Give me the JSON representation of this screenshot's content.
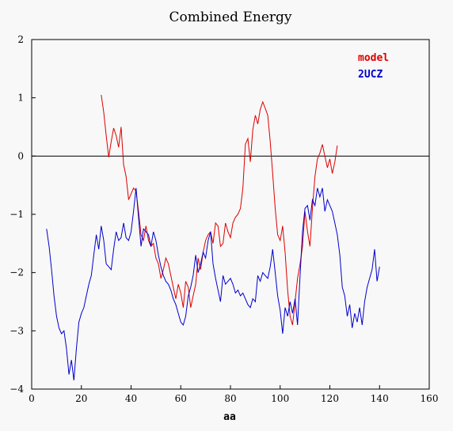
{
  "chart_data": {
    "type": "line",
    "title": "Combined Energy",
    "xlabel": "aa",
    "ylabel": "",
    "xlim": [
      0,
      160
    ],
    "ylim": [
      -4,
      2
    ],
    "xticks": [
      0,
      20,
      40,
      60,
      80,
      100,
      120,
      140,
      160
    ],
    "yticks": [
      -4,
      -3,
      -2,
      -1,
      0,
      1,
      2
    ],
    "zero_line": true,
    "legend_position": "top-right",
    "series": [
      {
        "name": "model",
        "color": "#dd0000",
        "points": [
          [
            28,
            1.05
          ],
          [
            29,
            0.75
          ],
          [
            30,
            0.35
          ],
          [
            31,
            -0.02
          ],
          [
            32,
            0.25
          ],
          [
            33,
            0.48
          ],
          [
            34,
            0.35
          ],
          [
            35,
            0.15
          ],
          [
            36,
            0.5
          ],
          [
            37,
            -0.15
          ],
          [
            38,
            -0.35
          ],
          [
            39,
            -0.75
          ],
          [
            40,
            -0.65
          ],
          [
            41,
            -0.55
          ],
          [
            42,
            -0.6
          ],
          [
            43,
            -0.95
          ],
          [
            44,
            -1.35
          ],
          [
            45,
            -1.45
          ],
          [
            46,
            -1.2
          ],
          [
            47,
            -1.45
          ],
          [
            48,
            -1.55
          ],
          [
            49,
            -1.5
          ],
          [
            50,
            -1.75
          ],
          [
            51,
            -1.85
          ],
          [
            52,
            -2.1
          ],
          [
            53,
            -1.95
          ],
          [
            54,
            -1.75
          ],
          [
            55,
            -1.85
          ],
          [
            56,
            -2.05
          ],
          [
            57,
            -2.25
          ],
          [
            58,
            -2.45
          ],
          [
            59,
            -2.2
          ],
          [
            60,
            -2.35
          ],
          [
            61,
            -2.6
          ],
          [
            62,
            -2.15
          ],
          [
            63,
            -2.25
          ],
          [
            64,
            -2.6
          ],
          [
            65,
            -2.4
          ],
          [
            66,
            -2.2
          ],
          [
            67,
            -1.75
          ],
          [
            68,
            -1.95
          ],
          [
            69,
            -1.65
          ],
          [
            70,
            -1.45
          ],
          [
            71,
            -1.35
          ],
          [
            72,
            -1.3
          ],
          [
            73,
            -1.5
          ],
          [
            74,
            -1.15
          ],
          [
            75,
            -1.2
          ],
          [
            76,
            -1.55
          ],
          [
            77,
            -1.5
          ],
          [
            78,
            -1.15
          ],
          [
            79,
            -1.3
          ],
          [
            80,
            -1.4
          ],
          [
            81,
            -1.15
          ],
          [
            82,
            -1.05
          ],
          [
            83,
            -1.0
          ],
          [
            84,
            -0.9
          ],
          [
            85,
            -0.55
          ],
          [
            86,
            0.2
          ],
          [
            87,
            0.3
          ],
          [
            88,
            -0.1
          ],
          [
            89,
            0.45
          ],
          [
            90,
            0.7
          ],
          [
            91,
            0.55
          ],
          [
            92,
            0.8
          ],
          [
            93,
            0.93
          ],
          [
            94,
            0.82
          ],
          [
            95,
            0.7
          ],
          [
            96,
            0.25
          ],
          [
            97,
            -0.3
          ],
          [
            98,
            -0.9
          ],
          [
            99,
            -1.35
          ],
          [
            100,
            -1.45
          ],
          [
            101,
            -1.2
          ],
          [
            102,
            -1.65
          ],
          [
            103,
            -2.3
          ],
          [
            104,
            -2.75
          ],
          [
            105,
            -2.9
          ],
          [
            106,
            -2.5
          ],
          [
            107,
            -2.1
          ],
          [
            108,
            -1.85
          ],
          [
            109,
            -1.55
          ],
          [
            110,
            -0.95
          ],
          [
            111,
            -1.3
          ],
          [
            112,
            -1.55
          ],
          [
            113,
            -0.9
          ],
          [
            114,
            -0.35
          ],
          [
            115,
            -0.05
          ],
          [
            116,
            0.05
          ],
          [
            117,
            0.2
          ],
          [
            118,
            0.0
          ],
          [
            119,
            -0.2
          ],
          [
            120,
            -0.05
          ],
          [
            121,
            -0.3
          ],
          [
            122,
            -0.1
          ],
          [
            123,
            0.18
          ]
        ]
      },
      {
        "name": "2UCZ",
        "color": "#0000cc",
        "points": [
          [
            6,
            -1.25
          ],
          [
            7,
            -1.55
          ],
          [
            8,
            -1.95
          ],
          [
            9,
            -2.4
          ],
          [
            10,
            -2.75
          ],
          [
            11,
            -2.95
          ],
          [
            12,
            -3.05
          ],
          [
            13,
            -3.0
          ],
          [
            14,
            -3.3
          ],
          [
            15,
            -3.75
          ],
          [
            16,
            -3.5
          ],
          [
            17,
            -3.85
          ],
          [
            18,
            -3.3
          ],
          [
            19,
            -2.85
          ],
          [
            20,
            -2.7
          ],
          [
            21,
            -2.6
          ],
          [
            22,
            -2.4
          ],
          [
            23,
            -2.2
          ],
          [
            24,
            -2.05
          ],
          [
            25,
            -1.7
          ],
          [
            26,
            -1.35
          ],
          [
            27,
            -1.6
          ],
          [
            28,
            -1.2
          ],
          [
            29,
            -1.45
          ],
          [
            30,
            -1.85
          ],
          [
            31,
            -1.9
          ],
          [
            32,
            -1.95
          ],
          [
            33,
            -1.6
          ],
          [
            34,
            -1.3
          ],
          [
            35,
            -1.45
          ],
          [
            36,
            -1.4
          ],
          [
            37,
            -1.15
          ],
          [
            38,
            -1.4
          ],
          [
            39,
            -1.45
          ],
          [
            40,
            -1.3
          ],
          [
            41,
            -0.95
          ],
          [
            42,
            -0.55
          ],
          [
            43,
            -1.05
          ],
          [
            44,
            -1.55
          ],
          [
            45,
            -1.25
          ],
          [
            46,
            -1.3
          ],
          [
            47,
            -1.35
          ],
          [
            48,
            -1.55
          ],
          [
            49,
            -1.3
          ],
          [
            50,
            -1.45
          ],
          [
            51,
            -1.7
          ],
          [
            52,
            -1.9
          ],
          [
            53,
            -2.05
          ],
          [
            54,
            -2.15
          ],
          [
            55,
            -2.2
          ],
          [
            56,
            -2.3
          ],
          [
            57,
            -2.45
          ],
          [
            58,
            -2.55
          ],
          [
            59,
            -2.7
          ],
          [
            60,
            -2.85
          ],
          [
            61,
            -2.9
          ],
          [
            62,
            -2.75
          ],
          [
            63,
            -2.4
          ],
          [
            64,
            -2.25
          ],
          [
            65,
            -2.05
          ],
          [
            66,
            -1.7
          ],
          [
            67,
            -2.0
          ],
          [
            68,
            -1.85
          ],
          [
            69,
            -1.65
          ],
          [
            70,
            -1.75
          ],
          [
            71,
            -1.45
          ],
          [
            72,
            -1.3
          ],
          [
            73,
            -1.85
          ],
          [
            74,
            -2.1
          ],
          [
            75,
            -2.3
          ],
          [
            76,
            -2.5
          ],
          [
            77,
            -2.05
          ],
          [
            78,
            -2.2
          ],
          [
            79,
            -2.15
          ],
          [
            80,
            -2.1
          ],
          [
            81,
            -2.2
          ],
          [
            82,
            -2.35
          ],
          [
            83,
            -2.3
          ],
          [
            84,
            -2.4
          ],
          [
            85,
            -2.35
          ],
          [
            86,
            -2.45
          ],
          [
            87,
            -2.55
          ],
          [
            88,
            -2.6
          ],
          [
            89,
            -2.45
          ],
          [
            90,
            -2.5
          ],
          [
            91,
            -2.05
          ],
          [
            92,
            -2.15
          ],
          [
            93,
            -2.0
          ],
          [
            94,
            -2.05
          ],
          [
            95,
            -2.1
          ],
          [
            96,
            -1.9
          ],
          [
            97,
            -1.6
          ],
          [
            98,
            -2.0
          ],
          [
            99,
            -2.4
          ],
          [
            100,
            -2.65
          ],
          [
            101,
            -3.05
          ],
          [
            102,
            -2.6
          ],
          [
            103,
            -2.75
          ],
          [
            104,
            -2.5
          ],
          [
            105,
            -2.7
          ],
          [
            106,
            -2.45
          ],
          [
            107,
            -2.9
          ],
          [
            108,
            -2.05
          ],
          [
            109,
            -1.3
          ],
          [
            110,
            -0.9
          ],
          [
            111,
            -0.85
          ],
          [
            112,
            -1.1
          ],
          [
            113,
            -0.75
          ],
          [
            114,
            -0.85
          ],
          [
            115,
            -0.55
          ],
          [
            116,
            -0.7
          ],
          [
            117,
            -0.55
          ],
          [
            118,
            -0.95
          ],
          [
            119,
            -0.75
          ],
          [
            120,
            -0.85
          ],
          [
            121,
            -0.95
          ],
          [
            122,
            -1.15
          ],
          [
            123,
            -1.35
          ],
          [
            124,
            -1.7
          ],
          [
            125,
            -2.25
          ],
          [
            126,
            -2.4
          ],
          [
            127,
            -2.75
          ],
          [
            128,
            -2.55
          ],
          [
            129,
            -2.95
          ],
          [
            130,
            -2.7
          ],
          [
            131,
            -2.85
          ],
          [
            132,
            -2.6
          ],
          [
            133,
            -2.9
          ],
          [
            134,
            -2.5
          ],
          [
            135,
            -2.25
          ],
          [
            136,
            -2.1
          ],
          [
            137,
            -1.95
          ],
          [
            138,
            -1.6
          ],
          [
            139,
            -2.15
          ],
          [
            140,
            -1.9
          ]
        ]
      }
    ]
  }
}
